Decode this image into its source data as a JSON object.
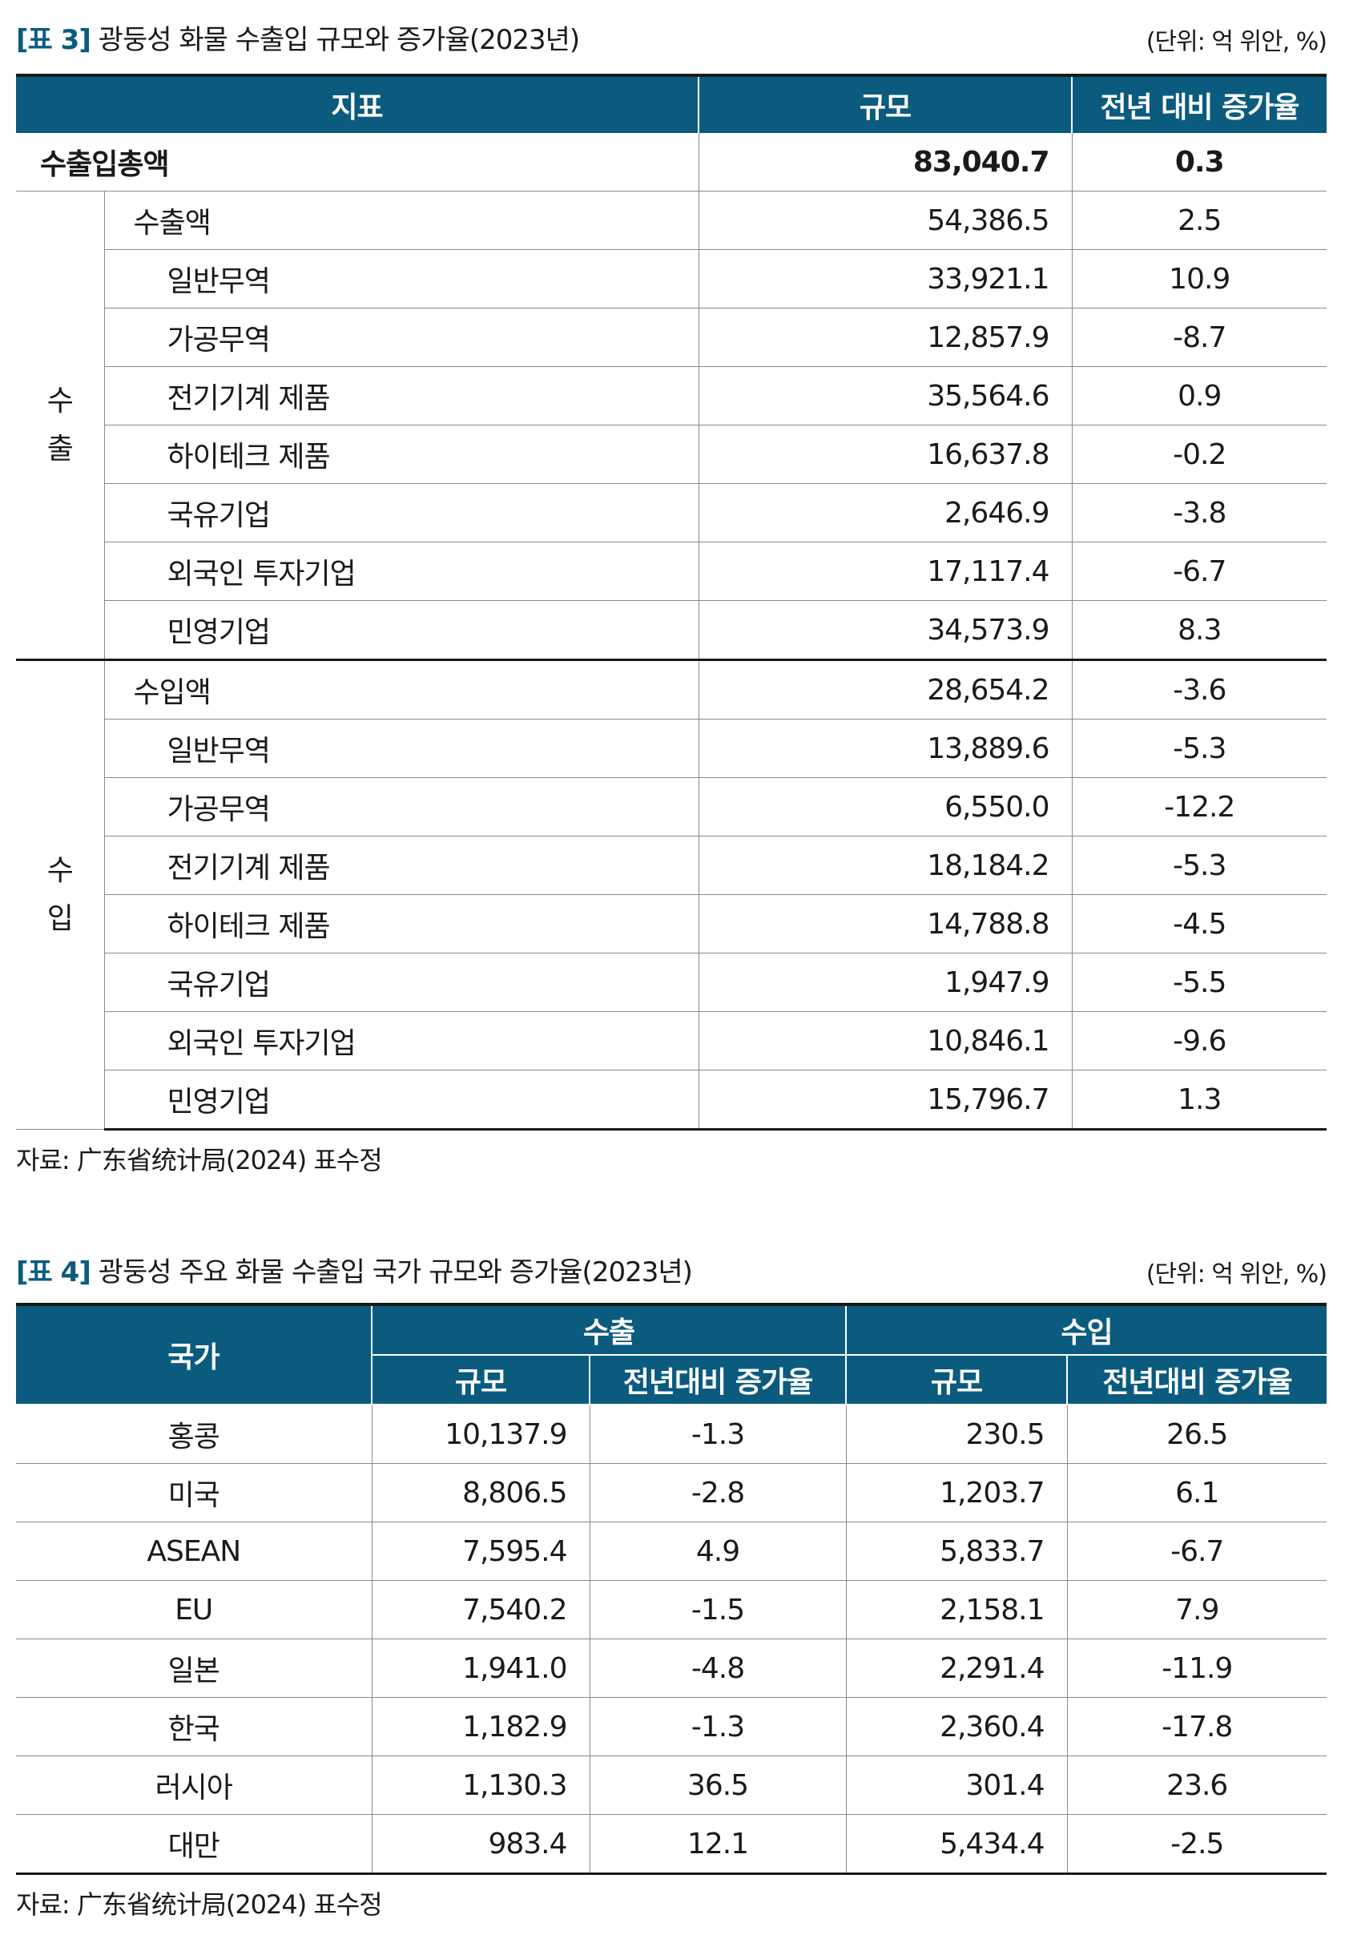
{
  "table3": {
    "tag": "[표 3]",
    "title": "광둥성 화물 수출입 규모와 증가율(2023년)",
    "unit": "(단위: 억 위안, %)",
    "headers": {
      "indicator": "지표",
      "scale": "규모",
      "growth": "전년 대비 증가율"
    },
    "total": {
      "label": "수출입총액",
      "value": "83,040.7",
      "growth": "0.3"
    },
    "export_group": "수\n출",
    "export_rows": [
      {
        "label": "수출액",
        "value": "54,386.5",
        "growth": "2.5",
        "level": 1
      },
      {
        "label": "일반무역",
        "value": "33,921.1",
        "growth": "10.9",
        "level": 2
      },
      {
        "label": "가공무역",
        "value": "12,857.9",
        "growth": "-8.7",
        "level": 2
      },
      {
        "label": "전기기계 제품",
        "value": "35,564.6",
        "growth": "0.9",
        "level": 2
      },
      {
        "label": "하이테크 제품",
        "value": "16,637.8",
        "growth": "-0.2",
        "level": 2
      },
      {
        "label": "국유기업",
        "value": "2,646.9",
        "growth": "-3.8",
        "level": 2
      },
      {
        "label": "외국인 투자기업",
        "value": "17,117.4",
        "growth": "-6.7",
        "level": 2
      },
      {
        "label": "민영기업",
        "value": "34,573.9",
        "growth": "8.3",
        "level": 2
      }
    ],
    "import_group": "수\n입",
    "import_rows": [
      {
        "label": "수입액",
        "value": "28,654.2",
        "growth": "-3.6",
        "level": 1
      },
      {
        "label": "일반무역",
        "value": "13,889.6",
        "growth": "-5.3",
        "level": 2
      },
      {
        "label": "가공무역",
        "value": "6,550.0",
        "growth": "-12.2",
        "level": 2
      },
      {
        "label": "전기기계 제품",
        "value": "18,184.2",
        "growth": "-5.3",
        "level": 2
      },
      {
        "label": "하이테크 제품",
        "value": "14,788.8",
        "growth": "-4.5",
        "level": 2
      },
      {
        "label": "국유기업",
        "value": "1,947.9",
        "growth": "-5.5",
        "level": 2
      },
      {
        "label": "외국인 투자기업",
        "value": "10,846.1",
        "growth": "-9.6",
        "level": 2
      },
      {
        "label": "민영기업",
        "value": "15,796.7",
        "growth": "1.3",
        "level": 2
      }
    ],
    "source": "자료: 广东省统计局(2024) 표수정"
  },
  "table4": {
    "tag": "[표 4]",
    "title": "광둥성 주요 화물 수출입 국가 규모와 증가율(2023년)",
    "unit": "(단위: 억 위안, %)",
    "headers": {
      "country": "국가",
      "export": "수출",
      "import": "수입",
      "scale": "규모",
      "growth": "전년대비 증가율"
    },
    "rows": [
      {
        "country": "홍콩",
        "exp_value": "10,137.9",
        "exp_growth": "-1.3",
        "imp_value": "230.5",
        "imp_growth": "26.5"
      },
      {
        "country": "미국",
        "exp_value": "8,806.5",
        "exp_growth": "-2.8",
        "imp_value": "1,203.7",
        "imp_growth": "6.1"
      },
      {
        "country": "ASEAN",
        "exp_value": "7,595.4",
        "exp_growth": "4.9",
        "imp_value": "5,833.7",
        "imp_growth": "-6.7"
      },
      {
        "country": "EU",
        "exp_value": "7,540.2",
        "exp_growth": "-1.5",
        "imp_value": "2,158.1",
        "imp_growth": "7.9"
      },
      {
        "country": "일본",
        "exp_value": "1,941.0",
        "exp_growth": "-4.8",
        "imp_value": "2,291.4",
        "imp_growth": "-11.9"
      },
      {
        "country": "한국",
        "exp_value": "1,182.9",
        "exp_growth": "-1.3",
        "imp_value": "2,360.4",
        "imp_growth": "-17.8"
      },
      {
        "country": "러시아",
        "exp_value": "1,130.3",
        "exp_growth": "36.5",
        "imp_value": "301.4",
        "imp_growth": "23.6"
      },
      {
        "country": "대만",
        "exp_value": "983.4",
        "exp_growth": "12.1",
        "imp_value": "5,434.4",
        "imp_growth": "-2.5"
      }
    ],
    "source": "자료: 广东省统计局(2024) 표수정"
  }
}
